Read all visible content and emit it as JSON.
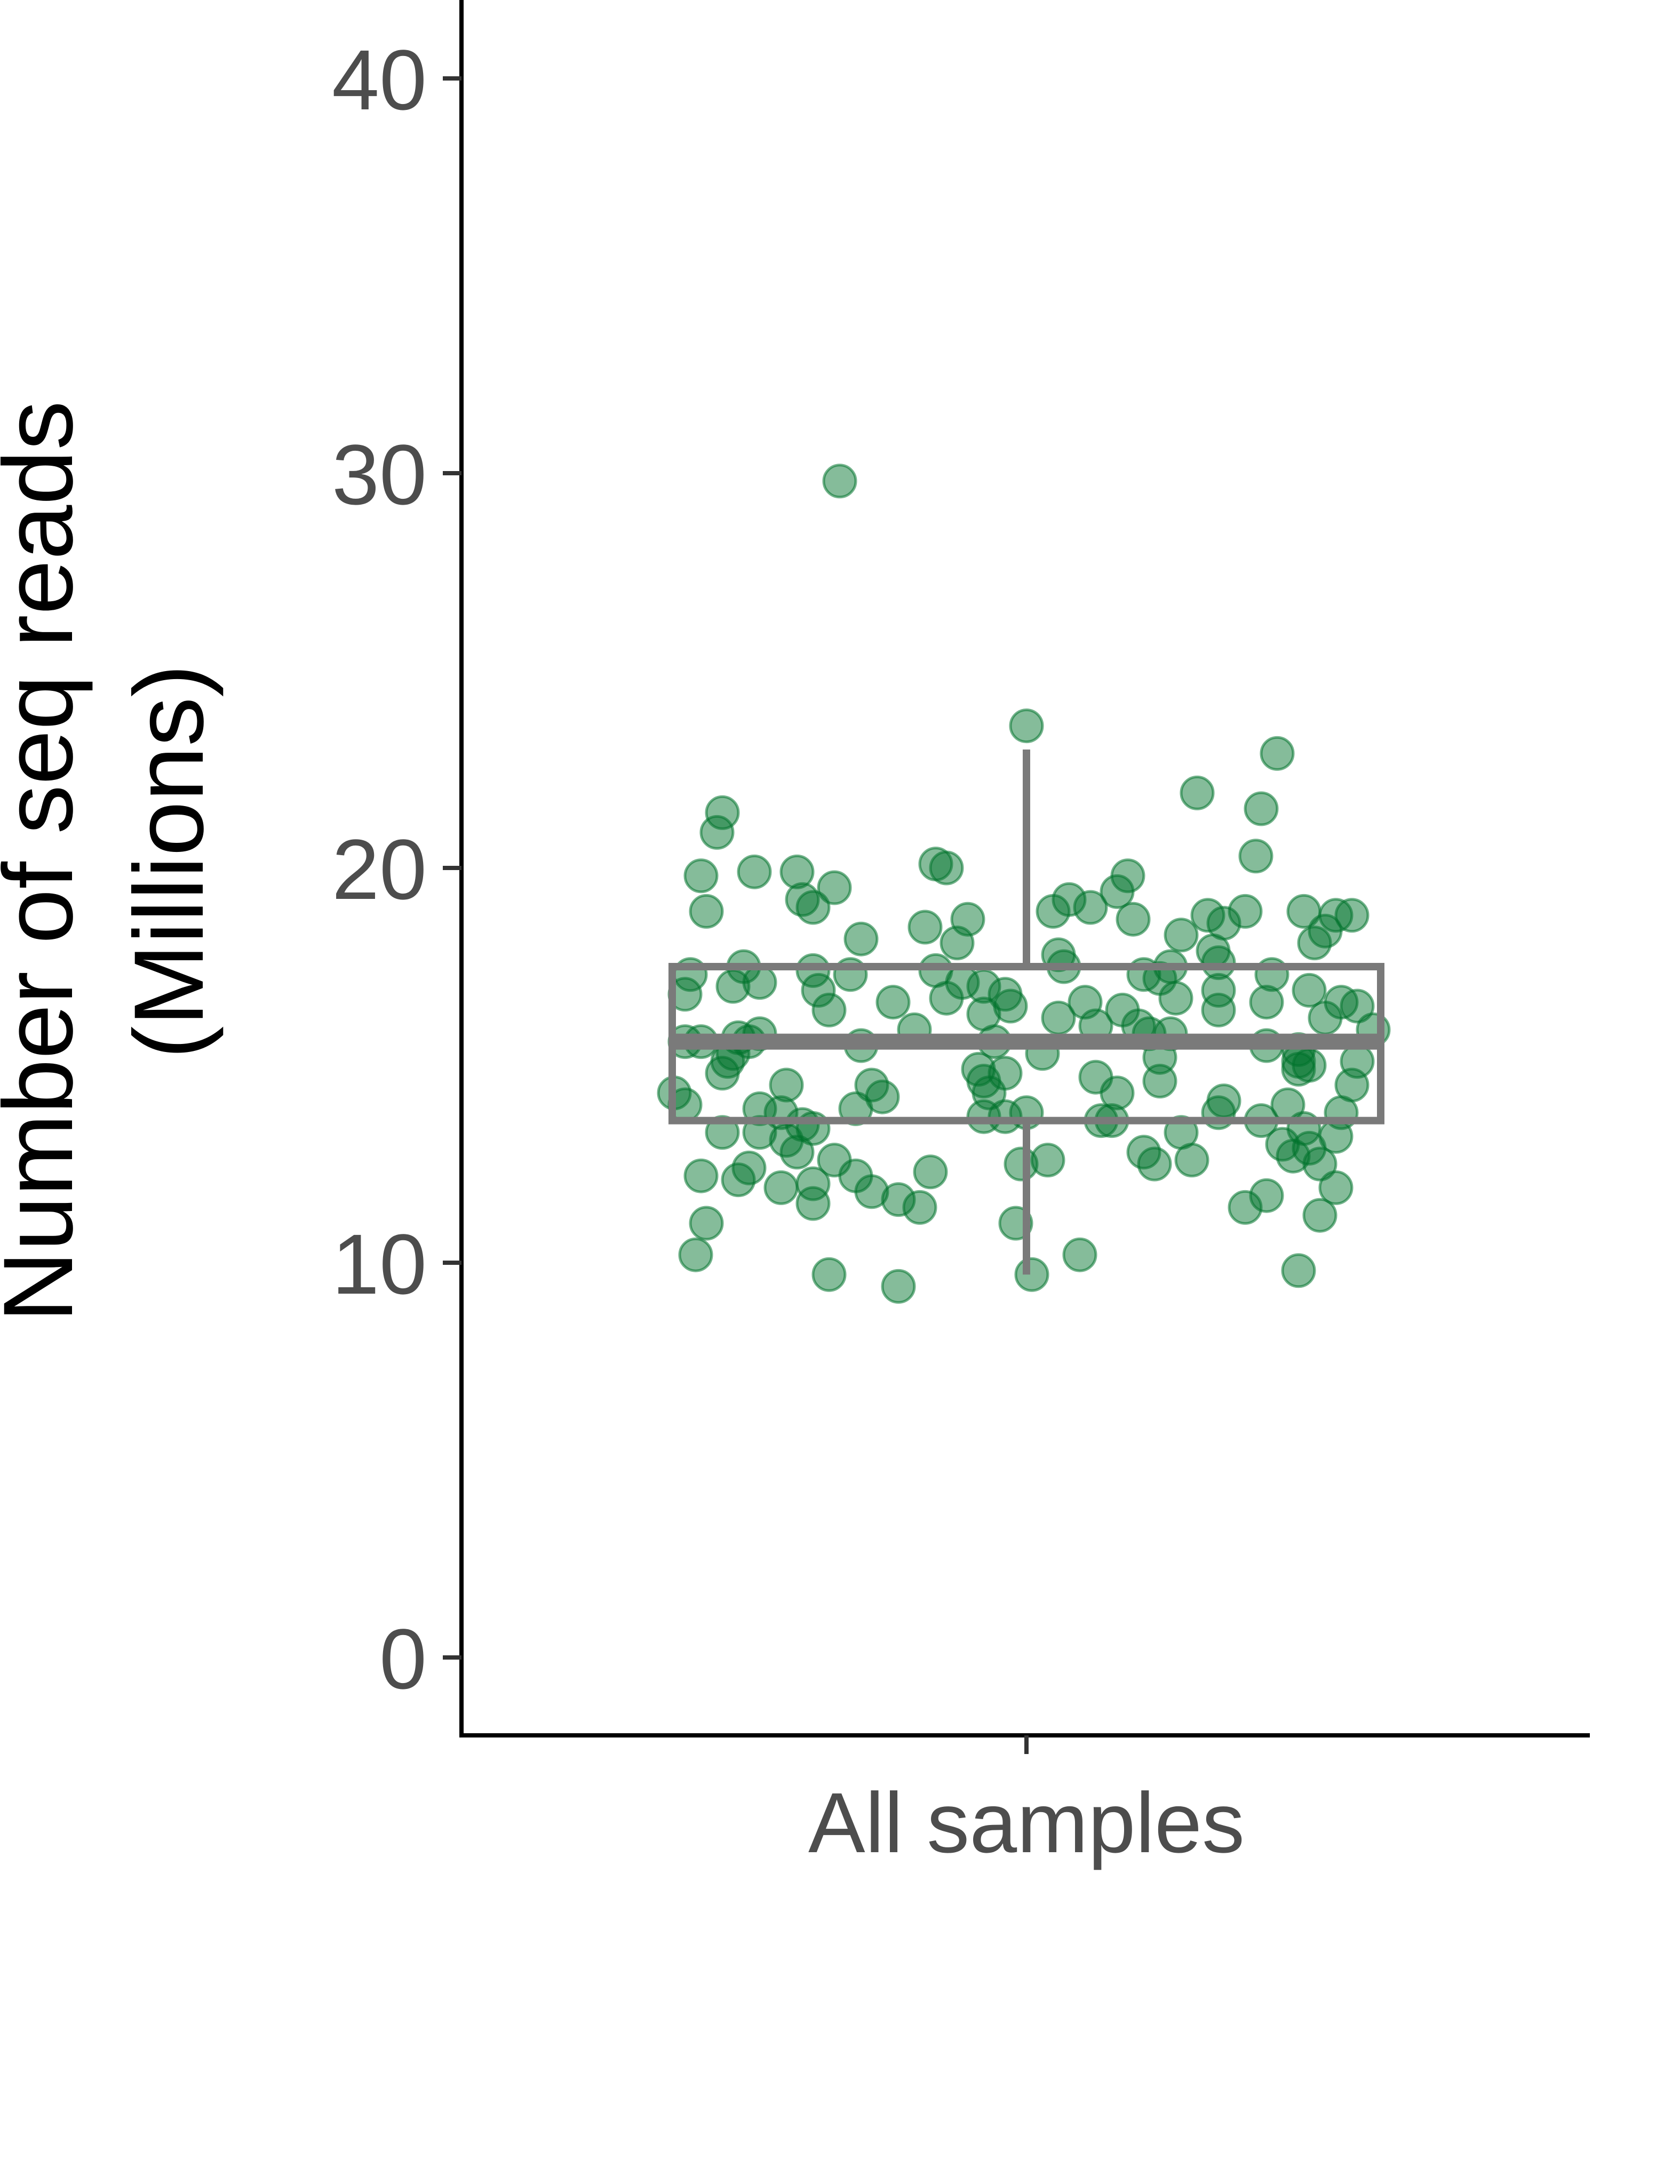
{
  "chart_data": {
    "type": "box-jitter",
    "ylabel_line1": "Number of seq reads",
    "ylabel_line2": "(Millions)",
    "xlabel": "",
    "categories": [
      "All samples"
    ],
    "ylim": [
      -2,
      42
    ],
    "yticks": [
      0,
      10,
      20,
      30,
      40
    ],
    "grid": false,
    "colors": {
      "point": "#00732c",
      "box": "#7a7a7a",
      "axis": "#000000",
      "tick_text": "#4d4d4d"
    },
    "box": {
      "category": "All samples",
      "q1": 13.6,
      "median": 15.6,
      "q3": 17.5,
      "whisker_low": 9.7,
      "whisker_high": 23.0
    },
    "points": [
      {
        "j": -0.35,
        "y": 29.8
      },
      {
        "j": 0.0,
        "y": 23.6
      },
      {
        "j": 0.47,
        "y": 22.9
      },
      {
        "j": 0.32,
        "y": 21.9
      },
      {
        "j": 0.44,
        "y": 21.5
      },
      {
        "j": -0.57,
        "y": 21.4
      },
      {
        "j": -0.58,
        "y": 20.9
      },
      {
        "j": 0.43,
        "y": 20.3
      },
      {
        "j": -0.17,
        "y": 20.1
      },
      {
        "j": -0.15,
        "y": 20.0
      },
      {
        "j": -0.43,
        "y": 19.9
      },
      {
        "j": -0.51,
        "y": 19.9
      },
      {
        "j": -0.61,
        "y": 19.8
      },
      {
        "j": 0.19,
        "y": 19.8
      },
      {
        "j": -0.36,
        "y": 19.5
      },
      {
        "j": 0.17,
        "y": 19.4
      },
      {
        "j": -0.42,
        "y": 19.2
      },
      {
        "j": 0.08,
        "y": 19.2
      },
      {
        "j": 0.12,
        "y": 19.0
      },
      {
        "j": -0.4,
        "y": 19.0
      },
      {
        "j": 0.05,
        "y": 18.9
      },
      {
        "j": 0.41,
        "y": 18.9
      },
      {
        "j": 0.52,
        "y": 18.9
      },
      {
        "j": -0.6,
        "y": 18.9
      },
      {
        "j": 0.58,
        "y": 18.8
      },
      {
        "j": 0.61,
        "y": 18.8
      },
      {
        "j": 0.34,
        "y": 18.8
      },
      {
        "j": 0.2,
        "y": 18.7
      },
      {
        "j": -0.11,
        "y": 18.7
      },
      {
        "j": 0.37,
        "y": 18.6
      },
      {
        "j": -0.19,
        "y": 18.5
      },
      {
        "j": 0.56,
        "y": 18.4
      },
      {
        "j": 0.29,
        "y": 18.3
      },
      {
        "j": -0.31,
        "y": 18.2
      },
      {
        "j": -0.13,
        "y": 18.1
      },
      {
        "j": 0.54,
        "y": 18.1
      },
      {
        "j": 0.35,
        "y": 17.9
      },
      {
        "j": 0.06,
        "y": 17.8
      },
      {
        "j": 0.36,
        "y": 17.6
      },
      {
        "j": 0.27,
        "y": 17.5
      },
      {
        "j": 0.07,
        "y": 17.5
      },
      {
        "j": -0.53,
        "y": 17.5
      },
      {
        "j": -0.4,
        "y": 17.4
      },
      {
        "j": -0.17,
        "y": 17.4
      },
      {
        "j": -0.63,
        "y": 17.3
      },
      {
        "j": -0.33,
        "y": 17.3
      },
      {
        "j": 0.22,
        "y": 17.3
      },
      {
        "j": 0.46,
        "y": 17.3
      },
      {
        "j": 0.25,
        "y": 17.2
      },
      {
        "j": -0.5,
        "y": 17.1
      },
      {
        "j": -0.12,
        "y": 17.1
      },
      {
        "j": -0.55,
        "y": 17.0
      },
      {
        "j": -0.08,
        "y": 17.0
      },
      {
        "j": 0.36,
        "y": 16.9
      },
      {
        "j": 0.53,
        "y": 16.9
      },
      {
        "j": -0.39,
        "y": 16.9
      },
      {
        "j": -0.64,
        "y": 16.8
      },
      {
        "j": -0.04,
        "y": 16.8
      },
      {
        "j": 0.28,
        "y": 16.7
      },
      {
        "j": -0.15,
        "y": 16.7
      },
      {
        "j": 0.45,
        "y": 16.6
      },
      {
        "j": -0.25,
        "y": 16.6
      },
      {
        "j": 0.59,
        "y": 16.6
      },
      {
        "j": 0.11,
        "y": 16.6
      },
      {
        "j": 0.62,
        "y": 16.5
      },
      {
        "j": -0.03,
        "y": 16.5
      },
      {
        "j": -0.37,
        "y": 16.4
      },
      {
        "j": 0.36,
        "y": 16.4
      },
      {
        "j": 0.18,
        "y": 16.4
      },
      {
        "j": -0.08,
        "y": 16.3
      },
      {
        "j": 0.06,
        "y": 16.2
      },
      {
        "j": 0.56,
        "y": 16.2
      },
      {
        "j": 0.13,
        "y": 16.0
      },
      {
        "j": 0.21,
        "y": 16.0
      },
      {
        "j": 0.65,
        "y": 15.9
      },
      {
        "j": -0.21,
        "y": 15.9
      },
      {
        "j": 0.27,
        "y": 15.8
      },
      {
        "j": 0.23,
        "y": 15.8
      },
      {
        "j": -0.5,
        "y": 15.8
      },
      {
        "j": -0.54,
        "y": 15.7
      },
      {
        "j": -0.64,
        "y": 15.6
      },
      {
        "j": -0.61,
        "y": 15.6
      },
      {
        "j": -0.06,
        "y": 15.6
      },
      {
        "j": -0.52,
        "y": 15.6
      },
      {
        "j": -0.31,
        "y": 15.5
      },
      {
        "j": 0.45,
        "y": 15.5
      },
      {
        "j": 0.51,
        "y": 15.4
      },
      {
        "j": -0.55,
        "y": 15.3
      },
      {
        "j": 0.03,
        "y": 15.3
      },
      {
        "j": 0.25,
        "y": 15.2
      },
      {
        "j": 0.51,
        "y": 15.1
      },
      {
        "j": -0.56,
        "y": 15.1
      },
      {
        "j": 0.62,
        "y": 15.1
      },
      {
        "j": 0.53,
        "y": 15.0
      },
      {
        "j": 0.51,
        "y": 14.9
      },
      {
        "j": -0.09,
        "y": 14.9
      },
      {
        "j": -0.04,
        "y": 14.8
      },
      {
        "j": -0.57,
        "y": 14.8
      },
      {
        "j": 0.13,
        "y": 14.7
      },
      {
        "j": 0.25,
        "y": 14.6
      },
      {
        "j": -0.08,
        "y": 14.6
      },
      {
        "j": 0.61,
        "y": 14.5
      },
      {
        "j": -0.45,
        "y": 14.5
      },
      {
        "j": -0.29,
        "y": 14.5
      },
      {
        "j": -0.66,
        "y": 14.3
      },
      {
        "j": -0.07,
        "y": 14.3
      },
      {
        "j": 0.17,
        "y": 14.3
      },
      {
        "j": -0.27,
        "y": 14.2
      },
      {
        "j": 0.37,
        "y": 14.1
      },
      {
        "j": 0.49,
        "y": 14.0
      },
      {
        "j": -0.64,
        "y": 14.0
      },
      {
        "j": -0.32,
        "y": 13.9
      },
      {
        "j": -0.5,
        "y": 13.9
      },
      {
        "j": -0.46,
        "y": 13.8
      },
      {
        "j": 0.0,
        "y": 13.8
      },
      {
        "j": 0.59,
        "y": 13.8
      },
      {
        "j": 0.36,
        "y": 13.8
      },
      {
        "j": -0.08,
        "y": 13.7
      },
      {
        "j": -0.04,
        "y": 13.7
      },
      {
        "j": 0.16,
        "y": 13.6
      },
      {
        "j": 0.14,
        "y": 13.6
      },
      {
        "j": 0.44,
        "y": 13.6
      },
      {
        "j": -0.42,
        "y": 13.5
      },
      {
        "j": -0.4,
        "y": 13.4
      },
      {
        "j": 0.52,
        "y": 13.4
      },
      {
        "j": -0.57,
        "y": 13.3
      },
      {
        "j": -0.5,
        "y": 13.3
      },
      {
        "j": 0.29,
        "y": 13.3
      },
      {
        "j": 0.58,
        "y": 13.2
      },
      {
        "j": -0.45,
        "y": 13.1
      },
      {
        "j": 0.48,
        "y": 13.0
      },
      {
        "j": 0.53,
        "y": 12.9
      },
      {
        "j": -0.43,
        "y": 12.8
      },
      {
        "j": 0.22,
        "y": 12.8
      },
      {
        "j": 0.5,
        "y": 12.7
      },
      {
        "j": 0.04,
        "y": 12.6
      },
      {
        "j": -0.36,
        "y": 12.6
      },
      {
        "j": 0.31,
        "y": 12.6
      },
      {
        "j": 0.24,
        "y": 12.5
      },
      {
        "j": -0.01,
        "y": 12.5
      },
      {
        "j": 0.55,
        "y": 12.5
      },
      {
        "j": -0.52,
        "y": 12.4
      },
      {
        "j": -0.18,
        "y": 12.3
      },
      {
        "j": -0.61,
        "y": 12.2
      },
      {
        "j": -0.32,
        "y": 12.2
      },
      {
        "j": -0.54,
        "y": 12.1
      },
      {
        "j": -0.4,
        "y": 12.0
      },
      {
        "j": -0.46,
        "y": 11.9
      },
      {
        "j": 0.58,
        "y": 11.9
      },
      {
        "j": -0.29,
        "y": 11.8
      },
      {
        "j": 0.45,
        "y": 11.7
      },
      {
        "j": -0.24,
        "y": 11.6
      },
      {
        "j": -0.4,
        "y": 11.5
      },
      {
        "j": 0.41,
        "y": 11.4
      },
      {
        "j": -0.2,
        "y": 11.4
      },
      {
        "j": 0.55,
        "y": 11.2
      },
      {
        "j": -0.6,
        "y": 11.0
      },
      {
        "j": -0.02,
        "y": 11.0
      },
      {
        "j": -0.62,
        "y": 10.2
      },
      {
        "j": 0.1,
        "y": 10.2
      },
      {
        "j": 0.51,
        "y": 9.8
      },
      {
        "j": -0.37,
        "y": 9.7
      },
      {
        "j": 0.01,
        "y": 9.7
      },
      {
        "j": -0.24,
        "y": 9.4
      }
    ]
  }
}
